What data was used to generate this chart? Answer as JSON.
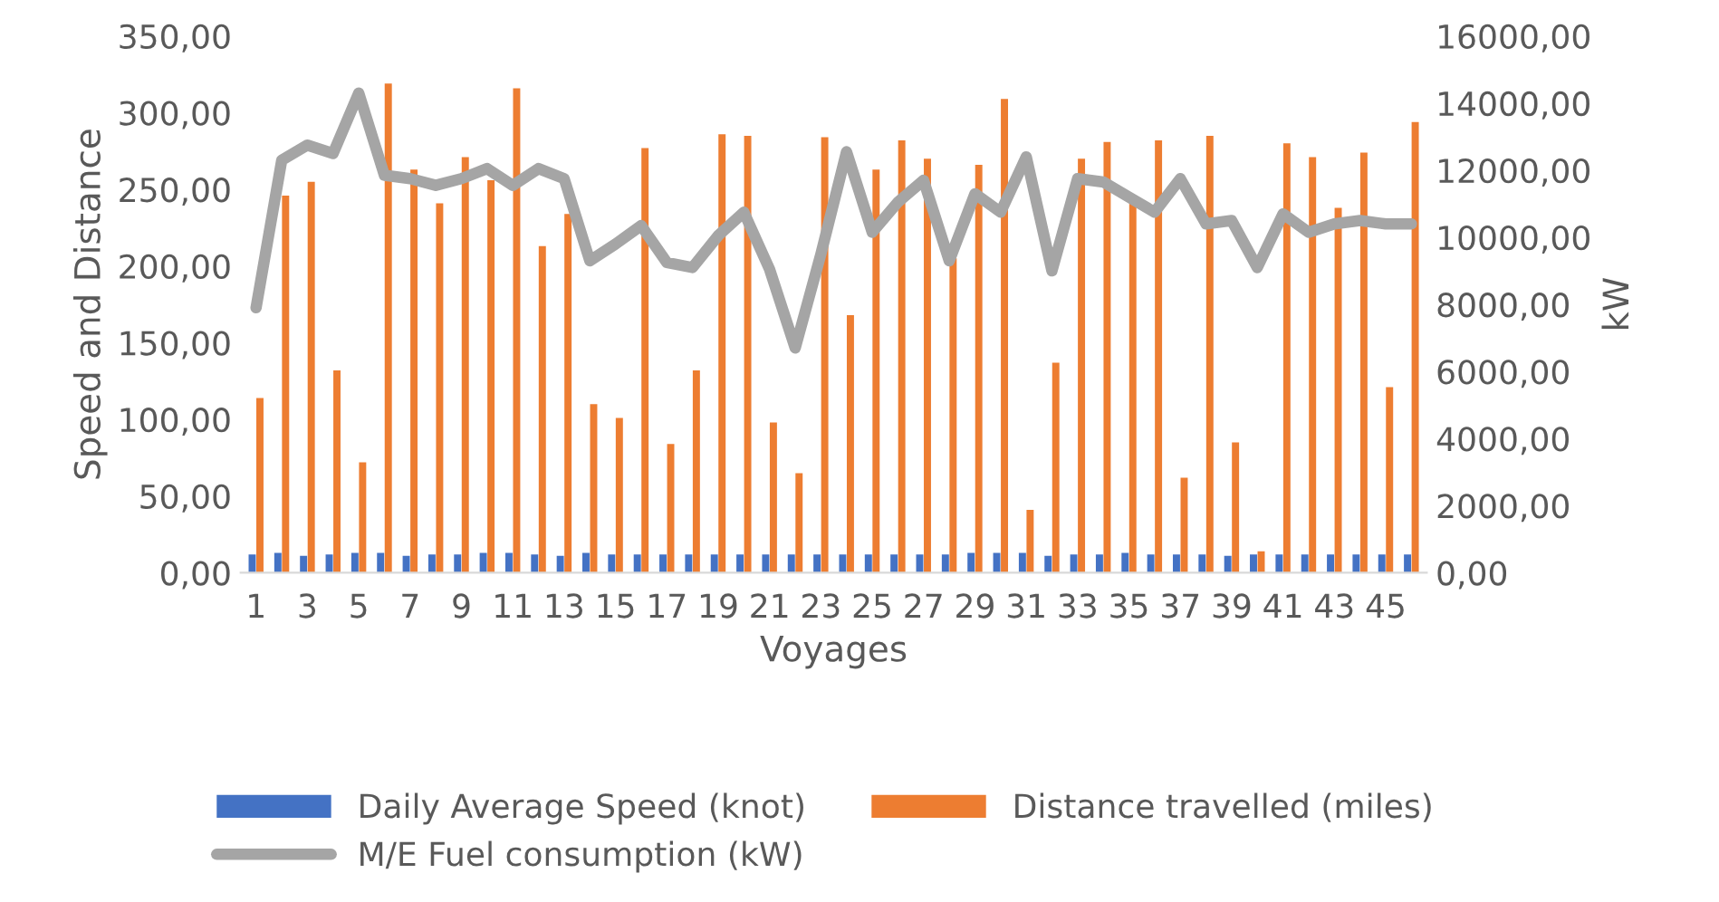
{
  "chart_data": {
    "type": "bar",
    "xlabel": "Voyages",
    "ylabel": "Speed and Distance",
    "y2label": "kW",
    "categories": [
      "1",
      null,
      "3",
      null,
      "5",
      null,
      "7",
      null,
      "9",
      null,
      "11",
      null,
      "13",
      null,
      "15",
      null,
      "17",
      null,
      "19",
      null,
      "21",
      null,
      "23",
      null,
      "25",
      null,
      "27",
      null,
      "29",
      null,
      "31",
      null,
      "33",
      null,
      "35",
      null,
      "37",
      null,
      "39",
      null,
      "41",
      null,
      "43",
      null,
      "45",
      null
    ],
    "series": [
      {
        "name": "Daily Average Speed (knot)",
        "color": "#4472c4",
        "values": [
          12,
          13,
          11,
          12,
          13,
          13,
          11,
          12,
          12,
          13,
          13,
          12,
          11,
          13,
          12,
          12,
          12,
          12,
          12,
          12,
          12,
          12,
          12,
          12,
          12,
          12,
          12,
          12,
          13,
          13,
          13,
          11,
          12,
          12,
          13,
          12,
          12,
          12,
          11,
          12,
          12,
          12,
          12,
          12,
          12,
          12
        ]
      },
      {
        "name": "Distance travelled (miles)",
        "color": "#ed7d31",
        "values": [
          114,
          246,
          255,
          132,
          72,
          319,
          263,
          241,
          271,
          256,
          316,
          213,
          234,
          110,
          101,
          277,
          84,
          132,
          286,
          285,
          98,
          65,
          284,
          168,
          263,
          282,
          270,
          205,
          266,
          309,
          41,
          137,
          270,
          281,
          242,
          282,
          62,
          285,
          85,
          14,
          280,
          271,
          238,
          274,
          121,
          294
        ]
      },
      {
        "name": "M/E Fuel consumption (kW)",
        "color": "#a5a5a5",
        "type": "line",
        "axis": "y2",
        "values": [
          7900,
          12300,
          12750,
          12500,
          14300,
          11850,
          11750,
          11550,
          11750,
          12050,
          11550,
          12050,
          11750,
          9300,
          9800,
          10350,
          9250,
          9100,
          10050,
          10750,
          9050,
          6700,
          9500,
          12550,
          10150,
          11050,
          11700,
          9300,
          11300,
          10750,
          12400,
          9000,
          11750,
          11650,
          11200,
          10750,
          11750,
          10400,
          10500,
          9100,
          10700,
          10150,
          10400,
          10500,
          10400,
          10400
        ]
      }
    ],
    "ylim": [
      0,
      350
    ],
    "yticks": [
      {
        "value": 0,
        "label": "0,00"
      },
      {
        "value": 50,
        "label": "50,00"
      },
      {
        "value": 100,
        "label": "100,00"
      },
      {
        "value": 150,
        "label": "150,00"
      },
      {
        "value": 200,
        "label": "200,00"
      },
      {
        "value": 250,
        "label": "250,00"
      },
      {
        "value": 300,
        "label": "300,00"
      },
      {
        "value": 350,
        "label": "350,00"
      }
    ],
    "y2lim": [
      0,
      16000
    ],
    "y2ticks": [
      {
        "value": 0,
        "label": "0,00"
      },
      {
        "value": 2000,
        "label": "2000,00"
      },
      {
        "value": 4000,
        "label": "4000,00"
      },
      {
        "value": 6000,
        "label": "6000,00"
      },
      {
        "value": 8000,
        "label": "8000,00"
      },
      {
        "value": 10000,
        "label": "10000,00"
      },
      {
        "value": 12000,
        "label": "12000,00"
      },
      {
        "value": 14000,
        "label": "14000,00"
      },
      {
        "value": 16000,
        "label": "16000,00"
      }
    ],
    "grid": false,
    "legend": "bottom"
  }
}
